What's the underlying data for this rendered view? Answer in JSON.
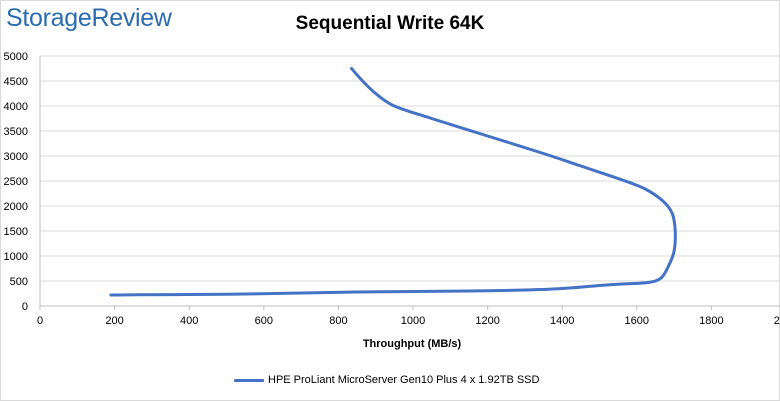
{
  "brand": {
    "logo_text": "StorageReview"
  },
  "chart_data": {
    "type": "line",
    "title": "Sequential Write 64K",
    "xlabel": "Throughput (MB/s)",
    "ylabel": "",
    "xlim": [
      0,
      2000
    ],
    "ylim": [
      0,
      5000
    ],
    "x_ticks": [
      "0",
      "200",
      "400",
      "600",
      "800",
      "1000",
      "1200",
      "1400",
      "1600",
      "1800",
      "2000"
    ],
    "y_ticks": [
      "0",
      "500",
      "1000",
      "1500",
      "2000",
      "2500",
      "3000",
      "3500",
      "4000",
      "4500",
      "5000"
    ],
    "grid": true,
    "legend_position": "bottom",
    "series": [
      {
        "name": "HPE ProLiant MicroServer Gen10 Plus 4 x 1.92TB SSD",
        "color": "#4472c4",
        "points": [
          [
            190,
            220
          ],
          [
            260,
            225
          ],
          [
            400,
            230
          ],
          [
            550,
            240
          ],
          [
            700,
            260
          ],
          [
            850,
            280
          ],
          [
            1000,
            290
          ],
          [
            1150,
            300
          ],
          [
            1300,
            320
          ],
          [
            1400,
            350
          ],
          [
            1500,
            410
          ],
          [
            1560,
            440
          ],
          [
            1630,
            470
          ],
          [
            1665,
            560
          ],
          [
            1685,
            800
          ],
          [
            1700,
            1100
          ],
          [
            1703,
            1500
          ],
          [
            1695,
            1850
          ],
          [
            1670,
            2100
          ],
          [
            1620,
            2350
          ],
          [
            1550,
            2550
          ],
          [
            1450,
            2800
          ],
          [
            1350,
            3050
          ],
          [
            1200,
            3400
          ],
          [
            1050,
            3750
          ],
          [
            950,
            4000
          ],
          [
            900,
            4250
          ],
          [
            865,
            4500
          ],
          [
            835,
            4750
          ]
        ]
      }
    ]
  }
}
